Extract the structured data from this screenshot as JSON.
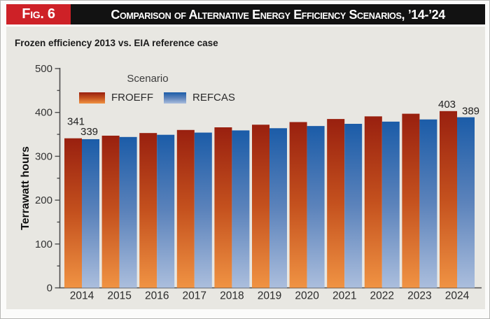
{
  "figure": {
    "badge": "Fig. 6",
    "title": "Comparison of Alternative Energy Efficiency Scenarios, ’14-’24"
  },
  "subtitle": "Frozen efficiency 2013 vs. EIA reference case",
  "legend": {
    "title": "Scenario",
    "items": [
      {
        "label": "FROEFF"
      },
      {
        "label": "REFCAS"
      }
    ]
  },
  "chart_data": {
    "type": "bar",
    "title": "Comparison of Alternative Energy Efficiency Scenarios, '14-'24",
    "subtitle": "Frozen efficiency 2013 vs. EIA reference case",
    "xlabel": "",
    "ylabel": "Terrawatt hours",
    "categories": [
      "2014",
      "2015",
      "2016",
      "2017",
      "2018",
      "2019",
      "2020",
      "2021",
      "2022",
      "2023",
      "2024"
    ],
    "series": [
      {
        "name": "FROEFF",
        "values": [
          341,
          347,
          353,
          360,
          366,
          372,
          378,
          385,
          391,
          397,
          403
        ]
      },
      {
        "name": "REFCAS",
        "values": [
          339,
          344,
          349,
          354,
          359,
          364,
          369,
          374,
          379,
          384,
          389
        ]
      }
    ],
    "data_labels": [
      {
        "series_index": 0,
        "category_index": 0,
        "value": 341
      },
      {
        "series_index": 1,
        "category_index": 0,
        "value": 339
      },
      {
        "series_index": 0,
        "category_index": 10,
        "value": 403
      },
      {
        "series_index": 1,
        "category_index": 10,
        "value": 389
      }
    ],
    "ylim": [
      0,
      500
    ],
    "ytick_interval": 100,
    "yminortick_interval": 50,
    "yticks": [
      0,
      100,
      200,
      300,
      400,
      500
    ],
    "grid": false,
    "legend_position": "upper-left-inside"
  },
  "colors": {
    "badge_red": "#ce2127",
    "header_black": "#121212",
    "panel_gray": "#e8e7e2",
    "axis": "#4d4d4d",
    "tick_text": "#333333",
    "data_label_text": "#1f1f1f",
    "froeff_gradient": [
      "#99200f",
      "#c4511e",
      "#f09343"
    ],
    "refcas_gradient": [
      "#1b5ca8",
      "#5c83bb",
      "#abbedd"
    ]
  }
}
